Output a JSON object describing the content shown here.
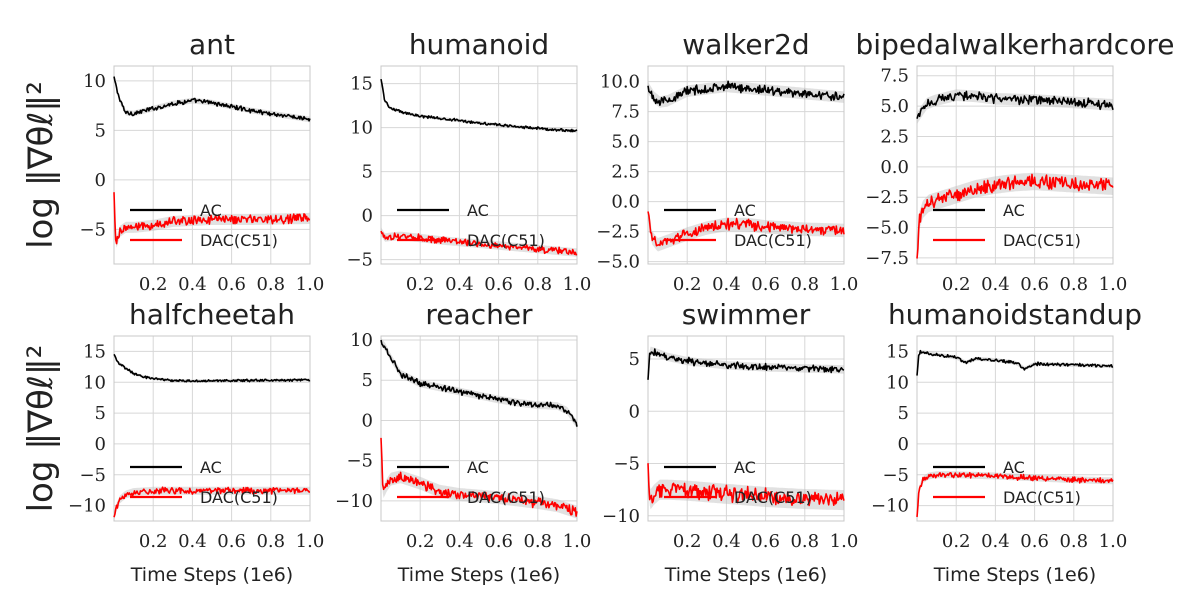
{
  "figure": {
    "ylabel_text": "log ‖∇θℓ‖²",
    "xlabel": "Time Steps (1e6)",
    "colors": {
      "ac": "#000000",
      "dac": "#ff0000",
      "band": "#bdbdbd"
    }
  },
  "chart_data": [
    {
      "type": "line",
      "title": "ant",
      "xlabel": "",
      "ylabel": "log ‖∇θℓ‖²",
      "xlim": [
        0,
        1.0
      ],
      "ylim": [
        -8.5,
        11.5
      ],
      "xticks": [
        0.2,
        0.4,
        0.6,
        0.8,
        1.0
      ],
      "xtick_labels": [
        "0.2",
        "0.4",
        "0.6",
        "0.8",
        "1.0"
      ],
      "yticks": [
        -5,
        0,
        5,
        10
      ],
      "ytick_labels": [
        "−5",
        "0",
        "5",
        "10"
      ],
      "legend": "lower-left",
      "series": [
        {
          "name": "AC",
          "color": "#000000",
          "noise": 0.18,
          "x": [
            0,
            0.03,
            0.06,
            0.1,
            0.2,
            0.3,
            0.4,
            0.5,
            0.6,
            0.7,
            0.8,
            0.9,
            1.0
          ],
          "y": [
            10.3,
            8.0,
            6.8,
            6.7,
            7.2,
            7.7,
            8.0,
            7.8,
            7.4,
            7.0,
            6.7,
            6.4,
            6.1
          ]
        },
        {
          "name": "DAC(C51)",
          "color": "#ff0000",
          "noise": 0.35,
          "x": [
            0,
            0.01,
            0.03,
            0.06,
            0.1,
            0.2,
            0.3,
            0.5,
            0.7,
            1.0
          ],
          "y": [
            -1.5,
            -6.5,
            -5.2,
            -4.8,
            -4.8,
            -4.6,
            -4.2,
            -4.0,
            -4.0,
            -3.9
          ]
        }
      ]
    },
    {
      "type": "line",
      "title": "humanoid",
      "xlabel": "",
      "ylabel": "",
      "xlim": [
        0,
        1.0
      ],
      "ylim": [
        -5.5,
        17.0
      ],
      "xticks": [
        0.2,
        0.4,
        0.6,
        0.8,
        1.0
      ],
      "xtick_labels": [
        "0.2",
        "0.4",
        "0.6",
        "0.8",
        "1.0"
      ],
      "yticks": [
        -5,
        0,
        5,
        10,
        15
      ],
      "ytick_labels": [
        "−5",
        "0",
        "5",
        "10",
        "15"
      ],
      "legend": "lower-left",
      "series": [
        {
          "name": "AC",
          "color": "#000000",
          "noise": 0.12,
          "x": [
            0,
            0.02,
            0.05,
            0.1,
            0.2,
            0.4,
            0.6,
            0.8,
            1.0
          ],
          "y": [
            15.5,
            13.0,
            12.2,
            11.8,
            11.3,
            10.8,
            10.3,
            9.9,
            9.6
          ]
        },
        {
          "name": "DAC(C51)",
          "color": "#ff0000",
          "noise": 0.3,
          "x": [
            0,
            0.02,
            0.05,
            0.1,
            0.3,
            0.5,
            0.7,
            1.0
          ],
          "y": [
            -1.8,
            -2.5,
            -2.4,
            -2.3,
            -2.8,
            -3.2,
            -3.6,
            -4.2
          ]
        }
      ]
    },
    {
      "type": "line",
      "title": "walker2d",
      "xlabel": "",
      "ylabel": "",
      "xlim": [
        0,
        1.0
      ],
      "ylim": [
        -5.2,
        11.3
      ],
      "xticks": [
        0.2,
        0.4,
        0.6,
        0.8,
        1.0
      ],
      "xtick_labels": [
        "0.2",
        "0.4",
        "0.6",
        "0.8",
        "1.0"
      ],
      "yticks": [
        -5,
        -2.5,
        0,
        2.5,
        5,
        7.5,
        10
      ],
      "ytick_labels": [
        "−5.0",
        "−2.5",
        "0.0",
        "2.5",
        "5.0",
        "7.5",
        "10.0"
      ],
      "legend": "lower-left",
      "series": [
        {
          "name": "AC",
          "color": "#000000",
          "noise": 0.3,
          "x": [
            0,
            0.03,
            0.06,
            0.1,
            0.15,
            0.2,
            0.3,
            0.4,
            0.6,
            0.8,
            1.0
          ],
          "y": [
            9.5,
            8.7,
            8.3,
            8.4,
            8.8,
            9.2,
            9.4,
            9.6,
            9.3,
            9.0,
            8.7
          ]
        },
        {
          "name": "DAC(C51)",
          "color": "#ff0000",
          "noise": 0.35,
          "x": [
            0,
            0.02,
            0.05,
            0.1,
            0.2,
            0.3,
            0.4,
            0.5,
            0.6,
            0.8,
            1.0
          ],
          "y": [
            -1.0,
            -3.0,
            -3.6,
            -3.3,
            -2.7,
            -2.2,
            -1.9,
            -1.9,
            -2.1,
            -2.3,
            -2.4
          ]
        }
      ]
    },
    {
      "type": "line",
      "title": "bipedalwalkerhardcore",
      "xlabel": "",
      "ylabel": "",
      "xlim": [
        0,
        1.0
      ],
      "ylim": [
        -8.0,
        8.3
      ],
      "xticks": [
        0.2,
        0.4,
        0.6,
        0.8,
        1.0
      ],
      "xtick_labels": [
        "0.2",
        "0.4",
        "0.6",
        "0.8",
        "1.0"
      ],
      "yticks": [
        -7.5,
        -5,
        -2.5,
        0,
        2.5,
        5,
        7.5
      ],
      "ytick_labels": [
        "−7.5",
        "−5.0",
        "−2.5",
        "0.0",
        "2.5",
        "5.0",
        "7.5"
      ],
      "legend": "lower-left",
      "series": [
        {
          "name": "AC",
          "color": "#000000",
          "noise": 0.3,
          "x": [
            0,
            0.02,
            0.05,
            0.1,
            0.2,
            0.3,
            0.4,
            0.6,
            0.8,
            1.0
          ],
          "y": [
            4.0,
            4.5,
            5.2,
            5.5,
            5.9,
            5.8,
            5.6,
            5.5,
            5.3,
            5.1
          ]
        },
        {
          "name": "DAC(C51)",
          "color": "#ff0000",
          "noise": 0.45,
          "x": [
            0,
            0.01,
            0.03,
            0.06,
            0.1,
            0.2,
            0.3,
            0.4,
            0.5,
            0.6,
            0.8,
            1.0
          ],
          "y": [
            -7.5,
            -4.5,
            -3.5,
            -3.0,
            -2.8,
            -2.3,
            -1.8,
            -1.5,
            -1.3,
            -1.2,
            -1.4,
            -1.6
          ]
        }
      ]
    },
    {
      "type": "line",
      "title": "halfcheetah",
      "xlabel": "Time Steps (1e6)",
      "ylabel": "log ‖∇θℓ‖²",
      "xlim": [
        0,
        1.0
      ],
      "ylim": [
        -12.5,
        17.5
      ],
      "xticks": [
        0.2,
        0.4,
        0.6,
        0.8,
        1.0
      ],
      "xtick_labels": [
        "0.2",
        "0.4",
        "0.6",
        "0.8",
        "1.0"
      ],
      "yticks": [
        -10,
        -5,
        0,
        5,
        10,
        15
      ],
      "ytick_labels": [
        "−10",
        "−5",
        "0",
        "5",
        "10",
        "15"
      ],
      "legend": "lower-left",
      "series": [
        {
          "name": "AC",
          "color": "#000000",
          "noise": 0.15,
          "x": [
            0,
            0.02,
            0.05,
            0.1,
            0.15,
            0.2,
            0.3,
            0.4,
            0.6,
            0.8,
            1.0
          ],
          "y": [
            14.5,
            13.2,
            12.5,
            11.4,
            10.9,
            10.6,
            10.3,
            10.2,
            10.3,
            10.3,
            10.4
          ]
        },
        {
          "name": "DAC(C51)",
          "color": "#ff0000",
          "noise": 0.4,
          "x": [
            0,
            0.01,
            0.03,
            0.06,
            0.1,
            0.2,
            0.4,
            0.6,
            0.8,
            1.0
          ],
          "y": [
            -12.0,
            -10.5,
            -9.0,
            -8.2,
            -7.8,
            -7.6,
            -7.6,
            -7.6,
            -7.6,
            -7.6
          ]
        }
      ]
    },
    {
      "type": "line",
      "title": "reacher",
      "xlabel": "Time Steps (1e6)",
      "ylabel": "",
      "xlim": [
        0,
        1.0
      ],
      "ylim": [
        -12.5,
        10.5
      ],
      "xticks": [
        0.2,
        0.4,
        0.6,
        0.8,
        1.0
      ],
      "xtick_labels": [
        "0.2",
        "0.4",
        "0.6",
        "0.8",
        "1.0"
      ],
      "yticks": [
        -10,
        -5,
        0,
        5,
        10
      ],
      "ytick_labels": [
        "−10",
        "−5",
        "0",
        "5",
        "10"
      ],
      "legend": "lower-left",
      "series": [
        {
          "name": "AC",
          "color": "#000000",
          "noise": 0.3,
          "x": [
            0,
            0.02,
            0.05,
            0.1,
            0.2,
            0.3,
            0.4,
            0.5,
            0.6,
            0.7,
            0.8,
            0.9,
            0.95,
            1.0
          ],
          "y": [
            9.8,
            9.2,
            7.8,
            5.8,
            4.6,
            4.1,
            3.6,
            3.1,
            2.6,
            2.2,
            1.9,
            1.8,
            1.2,
            -0.5
          ]
        },
        {
          "name": "DAC(C51)",
          "color": "#ff0000",
          "noise": 0.5,
          "x": [
            0,
            0.01,
            0.03,
            0.05,
            0.1,
            0.2,
            0.3,
            0.4,
            0.5,
            0.6,
            0.7,
            0.8,
            0.9,
            1.0
          ],
          "y": [
            -2.5,
            -9.0,
            -8.0,
            -7.3,
            -7.0,
            -7.8,
            -8.8,
            -9.2,
            -9.4,
            -9.6,
            -9.9,
            -10.2,
            -10.6,
            -11.4
          ]
        }
      ]
    },
    {
      "type": "line",
      "title": "swimmer",
      "xlabel": "Time Steps (1e6)",
      "ylabel": "",
      "xlim": [
        0,
        1.0
      ],
      "ylim": [
        -10.5,
        7.2
      ],
      "xticks": [
        0.2,
        0.4,
        0.6,
        0.8,
        1.0
      ],
      "xtick_labels": [
        "0.2",
        "0.4",
        "0.6",
        "0.8",
        "1.0"
      ],
      "yticks": [
        -10,
        -5,
        0,
        5
      ],
      "ytick_labels": [
        "−10",
        "−5",
        "0",
        "5"
      ],
      "legend": "lower-left",
      "series": [
        {
          "name": "AC",
          "color": "#000000",
          "noise": 0.25,
          "x": [
            0,
            0.01,
            0.03,
            0.06,
            0.1,
            0.2,
            0.3,
            0.4,
            0.6,
            0.8,
            1.0
          ],
          "y": [
            3.0,
            5.8,
            5.7,
            5.5,
            5.2,
            4.8,
            4.6,
            4.4,
            4.2,
            4.1,
            4.0
          ]
        },
        {
          "name": "DAC(C51)",
          "color": "#ff0000",
          "noise": 0.6,
          "x": [
            0,
            0.01,
            0.03,
            0.06,
            0.1,
            0.2,
            0.4,
            0.6,
            0.8,
            1.0
          ],
          "y": [
            -5.0,
            -8.5,
            -8.0,
            -7.5,
            -7.5,
            -7.6,
            -7.9,
            -8.2,
            -8.4,
            -8.5
          ]
        }
      ]
    },
    {
      "type": "line",
      "title": "humanoidstandup",
      "xlabel": "Time Steps (1e6)",
      "ylabel": "",
      "xlim": [
        0,
        1.0
      ],
      "ylim": [
        -12.5,
        17.5
      ],
      "xticks": [
        0.2,
        0.4,
        0.6,
        0.8,
        1.0
      ],
      "xtick_labels": [
        "0.2",
        "0.4",
        "0.6",
        "0.8",
        "1.0"
      ],
      "yticks": [
        -10,
        -5,
        0,
        5,
        10,
        15
      ],
      "ytick_labels": [
        "−10",
        "−5",
        "0",
        "5",
        "10",
        "15"
      ],
      "legend": "lower-left",
      "series": [
        {
          "name": "AC",
          "color": "#000000",
          "noise": 0.2,
          "x": [
            0,
            0.01,
            0.03,
            0.1,
            0.2,
            0.25,
            0.3,
            0.4,
            0.5,
            0.55,
            0.6,
            0.7,
            0.8,
            1.0
          ],
          "y": [
            11.0,
            14.8,
            14.9,
            14.5,
            14.0,
            13.2,
            13.8,
            13.6,
            13.2,
            12.2,
            13.0,
            12.9,
            12.8,
            12.6
          ]
        },
        {
          "name": "DAC(C51)",
          "color": "#ff0000",
          "noise": 0.35,
          "x": [
            0,
            0.01,
            0.03,
            0.06,
            0.1,
            0.2,
            0.4,
            0.6,
            0.8,
            1.0
          ],
          "y": [
            -12.0,
            -7.5,
            -5.8,
            -5.2,
            -5.0,
            -5.0,
            -5.2,
            -5.5,
            -5.8,
            -6.0
          ]
        }
      ]
    }
  ]
}
